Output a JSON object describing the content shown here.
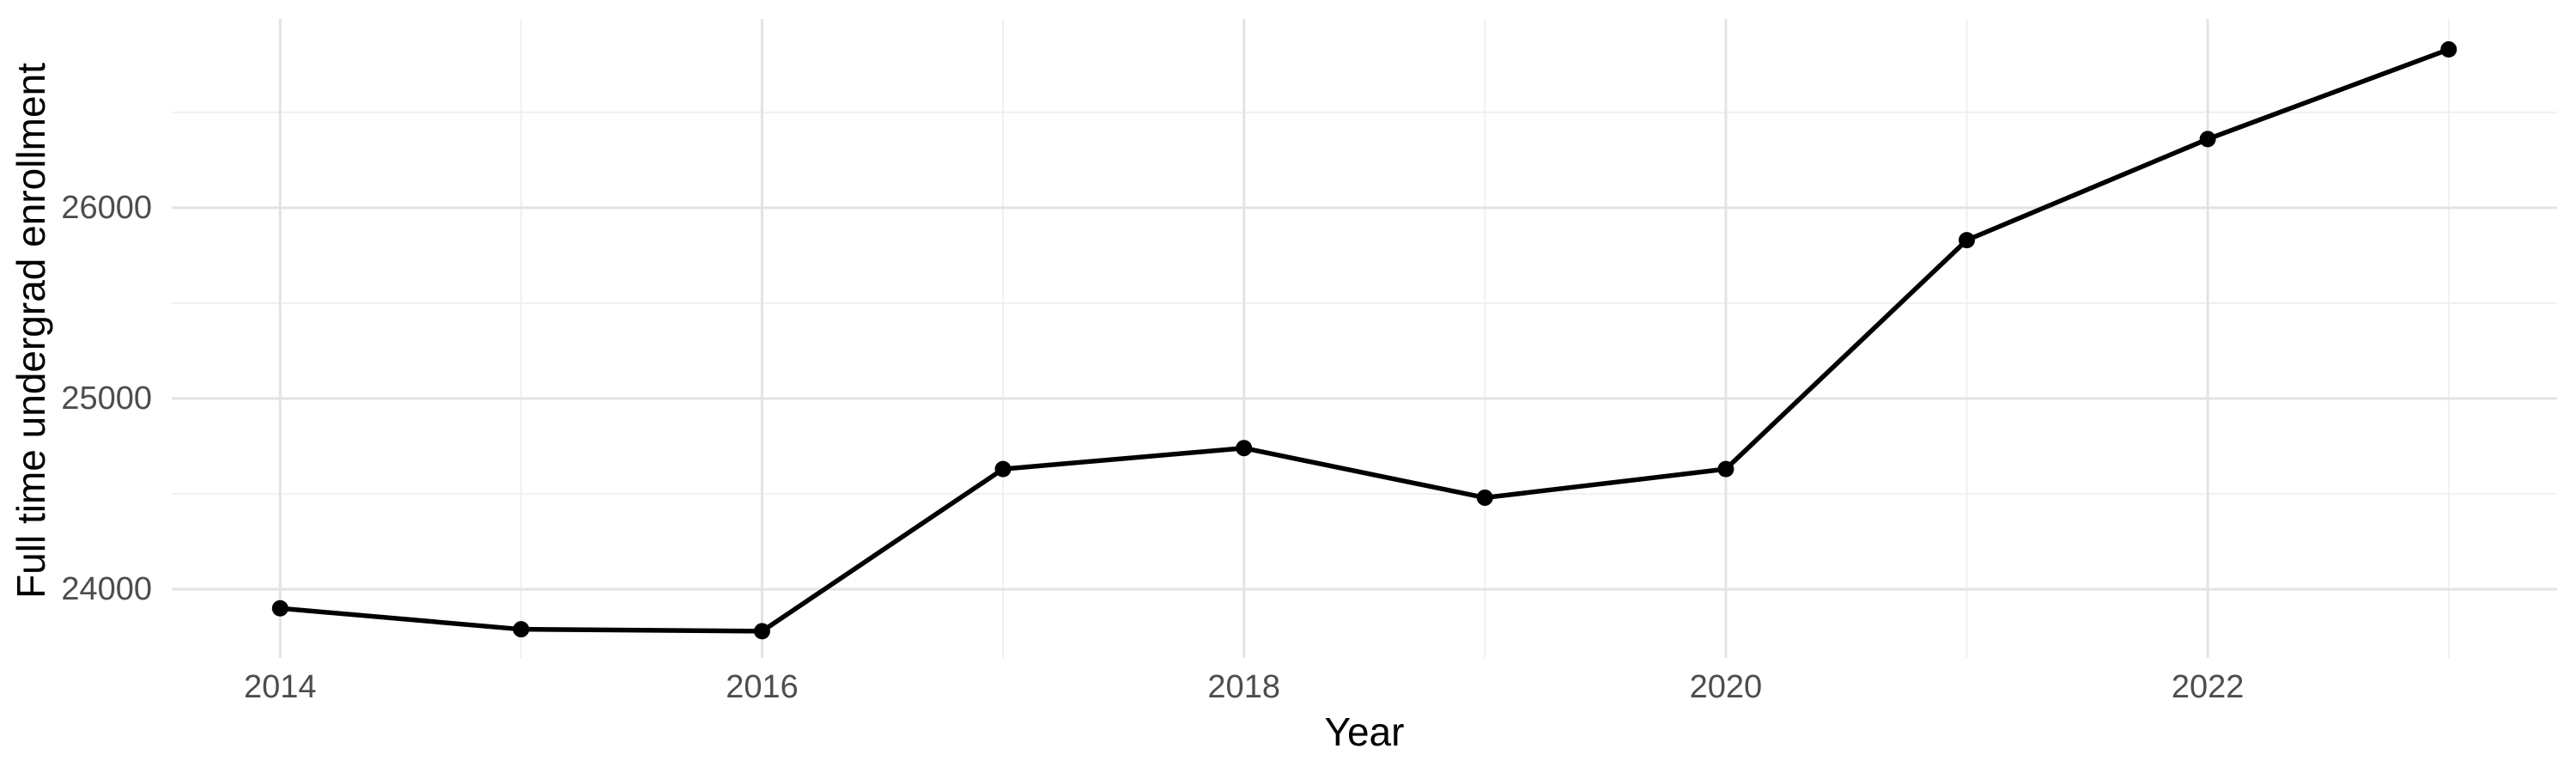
{
  "chart_data": {
    "type": "line",
    "title": "",
    "xlabel": "Year",
    "ylabel": "Full time undergrad enrollment",
    "x": [
      2014,
      2015,
      2016,
      2017,
      2018,
      2019,
      2020,
      2021,
      2022,
      2023
    ],
    "series": [
      {
        "name": "Full time undergrad enrollment",
        "values": [
          23900,
          23790,
          23780,
          24630,
          24740,
          24480,
          24630,
          25830,
          26360,
          26830
        ]
      }
    ],
    "x_ticks_major": [
      2014,
      2016,
      2018,
      2020,
      2022
    ],
    "x_tick_labels": [
      "2014",
      "2016",
      "2018",
      "2020",
      "2022"
    ],
    "x_ticks_minor": [
      2015,
      2017,
      2019,
      2021,
      2023
    ],
    "y_ticks_major": [
      24000,
      25000,
      26000
    ],
    "y_tick_labels": [
      "24000",
      "25000",
      "26000"
    ],
    "y_ticks_minor": [
      24500,
      25500,
      26500
    ],
    "xlim": [
      2013.55,
      2023.45
    ],
    "ylim": [
      23640,
      26990
    ],
    "grid": "major-and-minor, no axis lines, no tick marks",
    "legend_position": "none",
    "colors": {
      "series": "#000000",
      "grid_major": "#E3E3E3",
      "grid_minor": "#EFEFEF",
      "tick_label": "#4D4D4D",
      "axis_title": "#000000",
      "background": "#FFFFFF"
    }
  }
}
